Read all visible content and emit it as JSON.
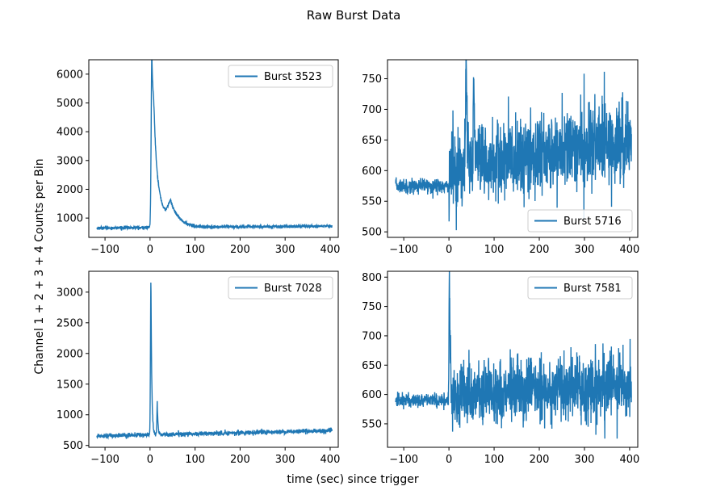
{
  "figure": {
    "suptitle": "Raw Burst Data",
    "xlabel": "time (sec) since trigger",
    "ylabel": "Channel 1 + 2 + 3 + 4 Counts per Bin"
  },
  "chart_data": [
    {
      "type": "line",
      "series": [
        {
          "name": "Burst 3523"
        }
      ],
      "legend": "top-right",
      "xlim": [
        -136,
        418
      ],
      "ylim": [
        330,
        6500
      ],
      "xticks": [
        -100,
        0,
        100,
        200,
        300,
        400
      ],
      "yticks": [
        1000,
        2000,
        3000,
        4000,
        5000,
        6000
      ],
      "profile": {
        "t_start": -118,
        "t_end": 404,
        "baseline_start": 655,
        "baseline_end": 725,
        "noise": 28,
        "peaks": [
          {
            "t": 4,
            "amp": 5500,
            "rise": 1.5,
            "decay": 5
          },
          {
            "t": 9,
            "amp": 2100,
            "rise": 3,
            "decay": 18
          },
          {
            "t": 46,
            "amp": 650,
            "rise": 6,
            "decay": 18
          }
        ]
      }
    },
    {
      "type": "line",
      "series": [
        {
          "name": "Burst 5716"
        }
      ],
      "legend": "bottom-right",
      "xlim": [
        -136,
        418
      ],
      "ylim": [
        491,
        781
      ],
      "xticks": [
        -100,
        0,
        100,
        200,
        300,
        400
      ],
      "yticks": [
        500,
        550,
        600,
        650,
        700,
        750
      ],
      "profile": {
        "t_start": -118,
        "t_end": 404,
        "baseline_start": 575,
        "baseline_end": 578,
        "noise": 6,
        "post_t": 0,
        "post_start": 600,
        "post_end": 650,
        "post_noise": 32,
        "peaks": [
          {
            "t": 38,
            "amp": 185,
            "rise": 1,
            "decay": 2
          },
          {
            "t": 55,
            "amp": 160,
            "rise": 1,
            "decay": 2
          }
        ]
      }
    },
    {
      "type": "line",
      "series": [
        {
          "name": "Burst 7028"
        }
      ],
      "legend": "top-right",
      "xlim": [
        -136,
        418
      ],
      "ylim": [
        470,
        3340
      ],
      "xticks": [
        -100,
        0,
        100,
        200,
        300,
        400
      ],
      "yticks": [
        500,
        1000,
        1500,
        2000,
        2500,
        3000
      ],
      "profile": {
        "t_start": -118,
        "t_end": 404,
        "baseline_start": 655,
        "baseline_end": 740,
        "noise": 18,
        "peaks": [
          {
            "t": 2,
            "amp": 2550,
            "rise": 1,
            "decay": 1.8
          },
          {
            "t": 16,
            "amp": 520,
            "rise": 0.8,
            "decay": 1.6
          }
        ]
      }
    },
    {
      "type": "line",
      "series": [
        {
          "name": "Burst 7581"
        }
      ],
      "legend": "top-right",
      "xlim": [
        -136,
        418
      ],
      "ylim": [
        510,
        810
      ],
      "xticks": [
        -100,
        0,
        100,
        200,
        300,
        400
      ],
      "yticks": [
        550,
        600,
        650,
        700,
        750,
        800
      ],
      "profile": {
        "t_start": -118,
        "t_end": 404,
        "baseline_start": 590,
        "baseline_end": 592,
        "noise": 6,
        "post_t": 0,
        "post_start": 600,
        "post_end": 615,
        "post_noise": 28,
        "peaks": [
          {
            "t": 1,
            "amp": 205,
            "rise": 0.8,
            "decay": 1.6
          }
        ]
      }
    }
  ],
  "style": {
    "line_color": "#1f77b4"
  }
}
